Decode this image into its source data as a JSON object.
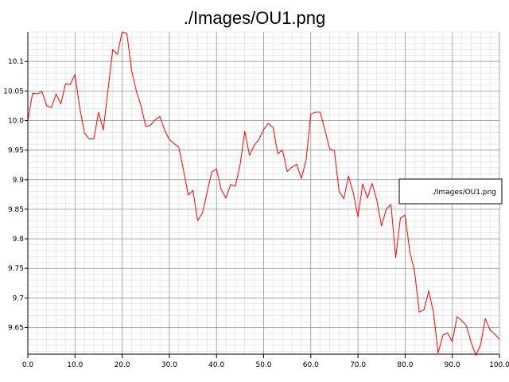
{
  "chart_data": {
    "type": "line",
    "title": "./Images/OU1.png",
    "xlabel": "",
    "ylabel": "",
    "xlim": [
      0,
      100
    ],
    "ylim": [
      9.605,
      10.15
    ],
    "x_ticks": [
      "0.0",
      "10.0",
      "20.0",
      "30.0",
      "40.0",
      "50.0",
      "60.0",
      "70.0",
      "80.0",
      "90.0",
      "100.0"
    ],
    "y_ticks": [
      "9.65",
      "9.7",
      "9.75",
      "9.8",
      "9.85",
      "9.9",
      "9.95",
      "10.0",
      "10.05",
      "10.1"
    ],
    "grid": true,
    "legend_position": "right",
    "series": [
      {
        "name": "./Images/OU1.png",
        "color": "#ff0000",
        "x": [
          0,
          1,
          2,
          3,
          4,
          5,
          6,
          7,
          8,
          9,
          10,
          11,
          12,
          13,
          14,
          15,
          16,
          17,
          18,
          19,
          20,
          21,
          22,
          23,
          24,
          25,
          26,
          27,
          28,
          29,
          30,
          31,
          32,
          33,
          34,
          35,
          36,
          37,
          38,
          39,
          40,
          41,
          42,
          43,
          44,
          45,
          46,
          47,
          48,
          49,
          50,
          51,
          52,
          53,
          54,
          55,
          56,
          57,
          58,
          59,
          60,
          61,
          62,
          63,
          64,
          65,
          66,
          67,
          68,
          69,
          70,
          71,
          72,
          73,
          74,
          75,
          76,
          77,
          78,
          79,
          80,
          81,
          82,
          83,
          84,
          85,
          86,
          87,
          88,
          89,
          90,
          91,
          92,
          93,
          94,
          95,
          96,
          97,
          98,
          99,
          100
        ],
        "values": [
          10.0,
          10.046,
          10.045,
          10.049,
          10.025,
          10.022,
          10.045,
          10.028,
          10.062,
          10.061,
          10.078,
          10.022,
          9.979,
          9.969,
          9.969,
          10.014,
          9.984,
          10.052,
          10.12,
          10.112,
          10.15,
          10.147,
          10.085,
          10.05,
          10.025,
          9.99,
          9.992,
          10.001,
          10.007,
          9.984,
          9.968,
          9.961,
          9.955,
          9.917,
          9.874,
          9.882,
          9.831,
          9.843,
          9.878,
          9.913,
          9.918,
          9.883,
          9.869,
          9.892,
          9.889,
          9.925,
          9.982,
          9.941,
          9.958,
          9.968,
          9.985,
          9.995,
          9.988,
          9.944,
          9.95,
          9.914,
          9.921,
          9.926,
          9.902,
          9.933,
          10.011,
          10.014,
          10.014,
          9.984,
          9.952,
          9.949,
          9.88,
          9.868,
          9.906,
          9.878,
          9.837,
          9.893,
          9.869,
          9.894,
          9.865,
          9.822,
          9.85,
          9.858,
          9.768,
          9.835,
          9.84,
          9.778,
          9.745,
          9.676,
          9.68,
          9.712,
          9.676,
          9.607,
          9.637,
          9.641,
          9.626,
          9.668,
          9.662,
          9.653,
          9.625,
          9.603,
          9.621,
          9.665,
          9.646,
          9.639,
          9.63
        ]
      }
    ]
  }
}
